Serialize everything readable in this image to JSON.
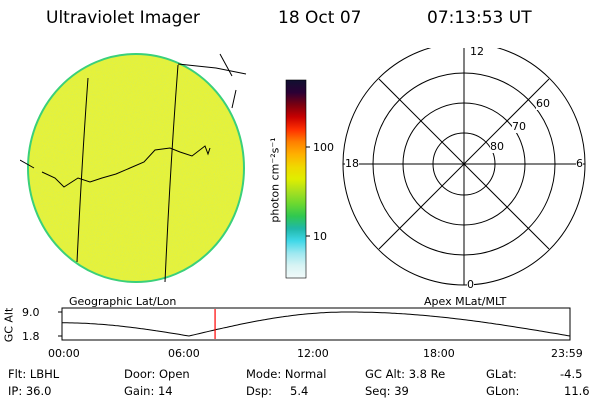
{
  "header": {
    "instrument": "Ultraviolet Imager",
    "date": "18 Oct 07",
    "time": "07:13:53 UT"
  },
  "colorbar": {
    "unit_label": "photon cm⁻²s⁻¹",
    "ticks": [
      "100",
      "10"
    ],
    "colors": [
      "#101030",
      "#2a0035",
      "#7a0010",
      "#c80000",
      "#ff3000",
      "#ff8000",
      "#ffb000",
      "#f0d800",
      "#e0ee00",
      "#a8e020",
      "#6cd830",
      "#30c850",
      "#20b8a8",
      "#40d8e8",
      "#9ee8f0",
      "#d8f4f4",
      "#f2fafa"
    ]
  },
  "earth_map": {
    "label": "Geographic Lat/Lon",
    "fill_color": "#e6f23a",
    "rim_color": "#3ad07a"
  },
  "polar_plot": {
    "label": "Apex MLat/MLT",
    "mlt_labels": {
      "top": "12",
      "left": "18",
      "right": "6",
      "bottom": "0"
    },
    "lat_labels": [
      "60",
      "70",
      "80"
    ]
  },
  "altitude_plot": {
    "ylabel": "GC Alt",
    "yticks": [
      "9.0",
      "1.8"
    ],
    "xticks": [
      "00:00",
      "06:00",
      "12:00",
      "18:00",
      "23:59"
    ],
    "marker_time": "07:13:53",
    "marker_color": "#ff0000"
  },
  "info": {
    "row1": {
      "filter": "Flt: LBHL",
      "door": "Door: Open",
      "mode": "Mode: Normal",
      "gc_alt": "GC Alt: 3.8 Re",
      "glat_label": "GLat:",
      "glat_value": "-4.5"
    },
    "row2": {
      "ip": "IP: 36.0",
      "gain": "Gain: 14",
      "dsp_label": "Dsp:",
      "dsp_value": "5.4",
      "seq": "Seq: 39",
      "glon_label": "GLon:",
      "glon_value": "11.6"
    }
  }
}
